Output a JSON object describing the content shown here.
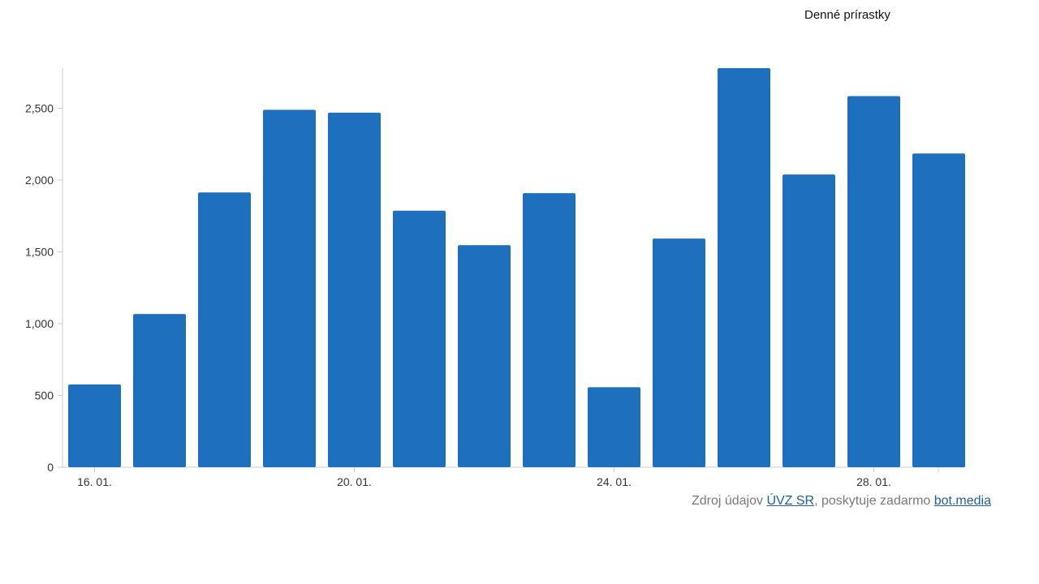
{
  "legend": {
    "title": "Denné prírastky"
  },
  "source": {
    "prefix": "Zdroj údajov ",
    "link1": "ÚVZ SR",
    "middle": ", poskytuje zadarmo ",
    "link2": "bot.media"
  },
  "colors": {
    "bar": "#1f6fbf",
    "axis": "#cccccc"
  },
  "chart_data": {
    "type": "bar",
    "title": "",
    "xlabel": "",
    "ylabel": "",
    "ylim": [
      0,
      2780
    ],
    "yticks": [
      0,
      500,
      1000,
      1500,
      2000,
      2500
    ],
    "ytick_labels": [
      "0",
      "500",
      "1,000",
      "1,500",
      "2,000",
      "2,500"
    ],
    "categories": [
      "16. 01.",
      "17. 01.",
      "18. 01.",
      "19. 01.",
      "20. 01.",
      "21. 01.",
      "22. 01.",
      "23. 01.",
      "24. 01.",
      "25. 01.",
      "26. 01.",
      "27. 01.",
      "28. 01.",
      "29. 01."
    ],
    "xtick_labels_shown": [
      "16. 01.",
      "20. 01.",
      "24. 01.",
      "28. 01."
    ],
    "series": [
      {
        "name": "Denné prírastky",
        "values": [
          576,
          1067,
          1914,
          2490,
          2470,
          1787,
          1547,
          1909,
          557,
          1593,
          2780,
          2039,
          2585,
          2185
        ]
      }
    ]
  }
}
